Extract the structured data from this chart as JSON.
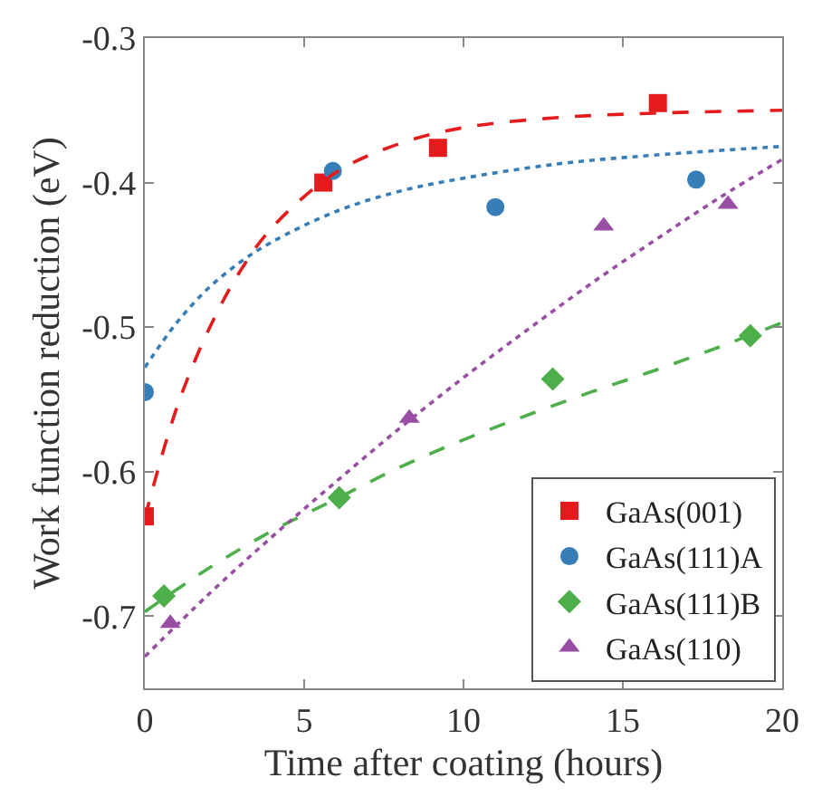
{
  "chart_data": {
    "type": "scatter",
    "xlabel": "Time after coating (hours)",
    "ylabel": "Work function reduction (eV)",
    "xlim": [
      0,
      20
    ],
    "xticks": [
      0,
      5,
      10,
      15,
      20
    ],
    "ylim": [
      -0.75,
      -0.3
    ],
    "yticks": [
      -0.7,
      -0.6,
      -0.5,
      -0.4,
      -0.3
    ],
    "legend": "bottom right",
    "series": [
      {
        "name": "GaAs(001)",
        "color": "#e41a1c",
        "marker": "square",
        "x": [
          0,
          5.6,
          9.2,
          16.1
        ],
        "values": [
          -0.631,
          -0.4,
          -0.376,
          -0.345
        ]
      },
      {
        "name": "GaAs(111)A",
        "color": "#377eb8",
        "marker": "circle",
        "x": [
          0,
          5.9,
          11,
          17.3
        ],
        "values": [
          -0.545,
          -0.392,
          -0.417,
          -0.398
        ]
      },
      {
        "name": "GaAs(111)B",
        "color": "#4daf4a",
        "marker": "diamond",
        "x": [
          0.6,
          6.1,
          12.8,
          19
        ],
        "values": [
          -0.686,
          -0.618,
          -0.536,
          -0.506
        ]
      },
      {
        "name": "GaAs(110)",
        "color": "#984ea3",
        "marker": "triangle",
        "x": [
          0.8,
          8.3,
          14.4,
          18.3
        ],
        "values": [
          -0.705,
          -0.563,
          -0.43,
          -0.415
        ]
      },
      {
        "type": "line",
        "color": "#e41a1c",
        "line_style": "dashed",
        "x": [
          0,
          1,
          2,
          3,
          4,
          6,
          8,
          10,
          13,
          16,
          20
        ],
        "values": [
          -0.632,
          -0.556,
          -0.502,
          -0.461,
          -0.431,
          -0.393,
          -0.373,
          -0.362,
          -0.355,
          -0.352,
          -0.35
        ]
      },
      {
        "type": "line",
        "color": "#377eb8",
        "line_style": "dotted",
        "x": [
          0,
          1,
          2,
          3,
          4,
          6,
          8,
          10,
          13,
          16,
          20
        ],
        "values": [
          -0.528,
          -0.497,
          -0.473,
          -0.455,
          -0.441,
          -0.42,
          -0.406,
          -0.397,
          -0.387,
          -0.381,
          -0.375
        ]
      },
      {
        "type": "line",
        "color": "#4daf4a",
        "line_style": "dashed",
        "x": [
          0,
          2,
          4,
          6,
          8,
          10,
          12,
          14,
          16,
          18,
          20
        ],
        "values": [
          -0.697,
          -0.667,
          -0.641,
          -0.619,
          -0.597,
          -0.578,
          -0.561,
          -0.545,
          -0.53,
          -0.514,
          -0.497
        ]
      },
      {
        "type": "line",
        "color": "#984ea3",
        "line_style": "dotted",
        "x": [
          0,
          2,
          4,
          6,
          8,
          10,
          12,
          14,
          16,
          18,
          20
        ],
        "values": [
          -0.728,
          -0.685,
          -0.645,
          -0.607,
          -0.57,
          -0.535,
          -0.502,
          -0.47,
          -0.44,
          -0.411,
          -0.384
        ]
      }
    ]
  }
}
